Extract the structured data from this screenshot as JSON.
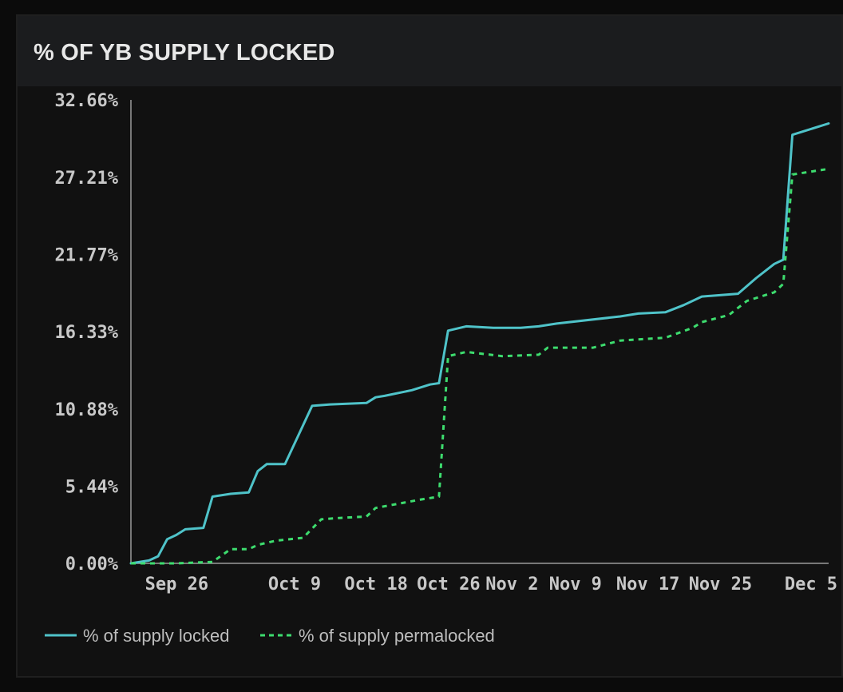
{
  "header": {
    "title": "% OF YB SUPPLY LOCKED"
  },
  "colors": {
    "locked": "#4fc3c9",
    "permalocked": "#3ddc6e",
    "axis": "#9a9a9a",
    "text": "#c8c8c8"
  },
  "chart_data": {
    "type": "line",
    "title": "% OF YB SUPPLY LOCKED",
    "xlabel": "",
    "ylabel": "",
    "ylim": [
      0,
      32.66
    ],
    "y_ticks": [
      0,
      5.44,
      10.88,
      16.33,
      21.77,
      27.21,
      32.66
    ],
    "y_tick_labels": [
      "0.00%",
      "5.44%",
      "10.88%",
      "16.33%",
      "21.77%",
      "27.21%",
      "32.66%"
    ],
    "x_range": [
      "2025-09-22",
      "2025-12-08"
    ],
    "x_ticks": [
      "2025-09-26",
      "2025-10-09",
      "2025-10-18",
      "2025-10-26",
      "2025-11-02",
      "2025-11-09",
      "2025-11-17",
      "2025-11-25",
      "2025-12-05"
    ],
    "x_tick_labels": [
      "Sep 26",
      "Oct 9",
      "Oct 18",
      "Oct 26",
      "Nov 2",
      "Nov 9",
      "Nov 17",
      "Nov 25",
      "Dec 5"
    ],
    "legend_position": "bottom-left",
    "grid": false,
    "series": [
      {
        "name": "% of supply locked",
        "style": "solid",
        "color": "#4fc3c9",
        "points": [
          [
            "2025-09-22",
            0.0
          ],
          [
            "2025-09-24",
            0.2
          ],
          [
            "2025-09-25",
            0.5
          ],
          [
            "2025-09-26",
            1.7
          ],
          [
            "2025-09-27",
            2.0
          ],
          [
            "2025-09-28",
            2.4
          ],
          [
            "2025-09-30",
            2.5
          ],
          [
            "2025-10-01",
            4.7
          ],
          [
            "2025-10-03",
            4.9
          ],
          [
            "2025-10-05",
            5.0
          ],
          [
            "2025-10-06",
            6.5
          ],
          [
            "2025-10-07",
            7.0
          ],
          [
            "2025-10-09",
            7.0
          ],
          [
            "2025-10-12",
            11.1
          ],
          [
            "2025-10-14",
            11.2
          ],
          [
            "2025-10-18",
            11.3
          ],
          [
            "2025-10-19",
            11.7
          ],
          [
            "2025-10-20",
            11.8
          ],
          [
            "2025-10-23",
            12.2
          ],
          [
            "2025-10-25",
            12.6
          ],
          [
            "2025-10-26",
            12.7
          ],
          [
            "2025-10-27",
            16.4
          ],
          [
            "2025-10-29",
            16.7
          ],
          [
            "2025-11-01",
            16.6
          ],
          [
            "2025-11-04",
            16.6
          ],
          [
            "2025-11-06",
            16.7
          ],
          [
            "2025-11-08",
            16.9
          ],
          [
            "2025-11-15",
            17.4
          ],
          [
            "2025-11-17",
            17.6
          ],
          [
            "2025-11-20",
            17.7
          ],
          [
            "2025-11-22",
            18.2
          ],
          [
            "2025-11-24",
            18.8
          ],
          [
            "2025-11-26",
            18.9
          ],
          [
            "2025-11-28",
            19.0
          ],
          [
            "2025-11-30",
            20.1
          ],
          [
            "2025-12-02",
            21.1
          ],
          [
            "2025-12-03",
            21.4
          ],
          [
            "2025-12-04",
            30.2
          ],
          [
            "2025-12-08",
            31.0
          ]
        ]
      },
      {
        "name": "% of supply permalocked",
        "style": "dashed",
        "color": "#3ddc6e",
        "points": [
          [
            "2025-09-22",
            0.0
          ],
          [
            "2025-09-27",
            0.0
          ],
          [
            "2025-10-01",
            0.1
          ],
          [
            "2025-10-03",
            1.0
          ],
          [
            "2025-10-05",
            1.0
          ],
          [
            "2025-10-06",
            1.3
          ],
          [
            "2025-10-08",
            1.6
          ],
          [
            "2025-10-11",
            1.8
          ],
          [
            "2025-10-13",
            3.1
          ],
          [
            "2025-10-15",
            3.2
          ],
          [
            "2025-10-18",
            3.3
          ],
          [
            "2025-10-19",
            3.9
          ],
          [
            "2025-10-24",
            4.5
          ],
          [
            "2025-10-26",
            4.7
          ],
          [
            "2025-10-27",
            14.6
          ],
          [
            "2025-10-29",
            14.9
          ],
          [
            "2025-11-02",
            14.6
          ],
          [
            "2025-11-06",
            14.7
          ],
          [
            "2025-11-07",
            15.2
          ],
          [
            "2025-11-12",
            15.2
          ],
          [
            "2025-11-15",
            15.7
          ],
          [
            "2025-11-20",
            15.9
          ],
          [
            "2025-11-23",
            16.6
          ],
          [
            "2025-11-24",
            17.0
          ],
          [
            "2025-11-27",
            17.5
          ],
          [
            "2025-11-29",
            18.5
          ],
          [
            "2025-12-02",
            19.1
          ],
          [
            "2025-12-03",
            19.7
          ],
          [
            "2025-12-04",
            27.4
          ],
          [
            "2025-12-08",
            27.8
          ]
        ]
      }
    ]
  }
}
